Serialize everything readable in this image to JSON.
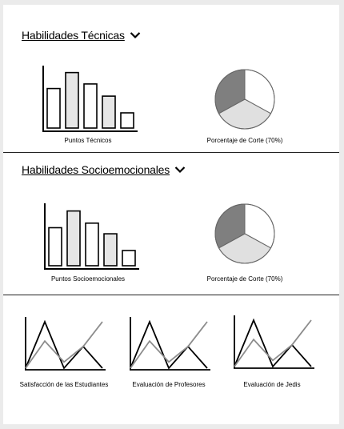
{
  "sections": [
    {
      "title": "Habilidades Técnicas",
      "bar_caption": "Puntos Técnicos",
      "pie_caption": "Porcentaje de Corte (70%)"
    },
    {
      "title": "Habilidades Socioemocionales",
      "bar_caption": "Puntos Socioemocionales",
      "pie_caption": "Porcentaje de Corte (70%)"
    }
  ],
  "line_captions": [
    "Satisfacción de las Estudiantes",
    "Evaluación de Profesores",
    "Evaluación de Jedis"
  ],
  "colors": {
    "bar_light": "#e6e6e6",
    "pie_dark": "#7f7f7f",
    "pie_light": "#e0e0e0",
    "line_gray": "#8c8c8c"
  },
  "chart_data": [
    {
      "type": "bar",
      "values": [
        52,
        73,
        58,
        42,
        20
      ],
      "fill_pattern": [
        "white",
        "light",
        "white",
        "light",
        "white"
      ]
    },
    {
      "type": "pie",
      "slices": [
        0.33,
        0.34,
        0.33
      ],
      "colors": [
        "white",
        "light",
        "dark"
      ]
    },
    {
      "type": "bar",
      "values": [
        50,
        72,
        56,
        42,
        20
      ],
      "fill_pattern": [
        "white",
        "light",
        "white",
        "light",
        "white"
      ]
    },
    {
      "type": "pie",
      "slices": [
        0.33,
        0.34,
        0.33
      ],
      "colors": [
        "white",
        "light",
        "dark"
      ]
    },
    {
      "type": "line",
      "series": [
        {
          "values": [
            0,
            60,
            0,
            28,
            0
          ]
        },
        {
          "values": [
            0,
            35,
            8,
            28,
            60
          ]
        }
      ]
    },
    {
      "type": "line",
      "series": [
        {
          "values": [
            0,
            60,
            0,
            28,
            0
          ]
        },
        {
          "values": [
            0,
            35,
            8,
            28,
            60
          ]
        }
      ]
    },
    {
      "type": "line",
      "series": [
        {
          "values": [
            0,
            60,
            0,
            28,
            0
          ]
        },
        {
          "values": [
            0,
            35,
            8,
            28,
            60
          ]
        }
      ]
    }
  ]
}
